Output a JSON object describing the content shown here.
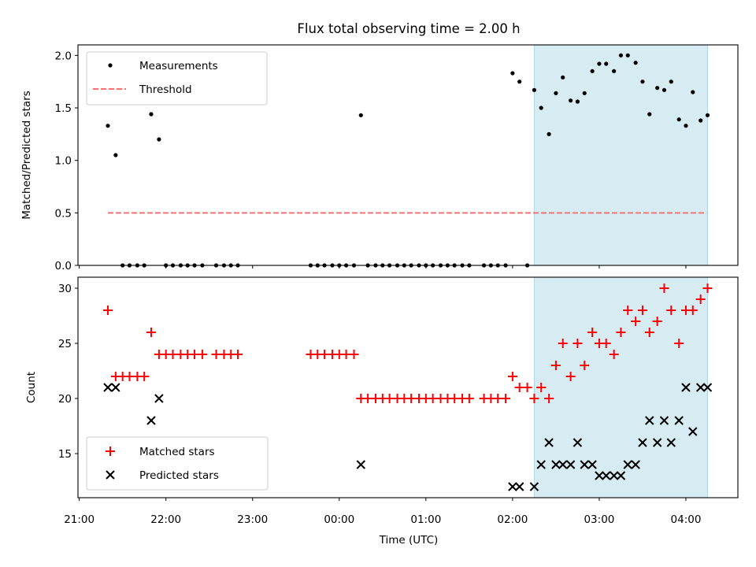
{
  "chart_data": {
    "title": "Flux total observing time = 2.00 h",
    "xlabel": "Time (UTC)",
    "x_ticks": [
      "21:00",
      "22:00",
      "23:00",
      "00:00",
      "01:00",
      "02:00",
      "03:00",
      "04:00"
    ],
    "x_range_hours": [
      20.985,
      28.6
    ],
    "highlight_span_hours": [
      26.25,
      28.25
    ],
    "colors": {
      "highlight": "#add8e6",
      "threshold": "#ff6f6f",
      "matched": "#ff0000",
      "predicted": "#000000",
      "measurement": "#000000"
    },
    "panels": [
      {
        "type": "scatter",
        "ylabel": "Matched/Predicted stars",
        "ylim": [
          0,
          2.1
        ],
        "yticks": [
          "0.0",
          "0.5",
          "1.0",
          "1.5",
          "2.0"
        ],
        "legend": {
          "position": "upper-left",
          "entries": [
            "Measurements",
            "Threshold"
          ]
        },
        "threshold": {
          "name": "Threshold",
          "y": 0.5,
          "x_range": [
            21.33,
            28.24
          ]
        },
        "series": [
          {
            "name": "Measurements",
            "points": [
              [
                21.33,
                1.33
              ],
              [
                21.42,
                1.05
              ],
              [
                21.5,
                0
              ],
              [
                21.58,
                0
              ],
              [
                21.67,
                0
              ],
              [
                21.75,
                0
              ],
              [
                21.83,
                1.44
              ],
              [
                21.92,
                1.2
              ],
              [
                22.0,
                0
              ],
              [
                22.08,
                0
              ],
              [
                22.17,
                0
              ],
              [
                22.25,
                0
              ],
              [
                22.33,
                0
              ],
              [
                22.42,
                0
              ],
              [
                22.58,
                0
              ],
              [
                22.67,
                0
              ],
              [
                22.75,
                0
              ],
              [
                22.83,
                0
              ],
              [
                23.67,
                0
              ],
              [
                23.75,
                0
              ],
              [
                23.83,
                0
              ],
              [
                23.92,
                0
              ],
              [
                24.0,
                0
              ],
              [
                24.08,
                0
              ],
              [
                24.17,
                0
              ],
              [
                24.25,
                1.43
              ],
              [
                24.33,
                0
              ],
              [
                24.42,
                0
              ],
              [
                24.5,
                0
              ],
              [
                24.58,
                0
              ],
              [
                24.67,
                0
              ],
              [
                24.75,
                0
              ],
              [
                24.83,
                0
              ],
              [
                24.92,
                0
              ],
              [
                25.0,
                0
              ],
              [
                25.08,
                0
              ],
              [
                25.17,
                0
              ],
              [
                25.25,
                0
              ],
              [
                25.33,
                0
              ],
              [
                25.42,
                0
              ],
              [
                25.5,
                0
              ],
              [
                25.67,
                0
              ],
              [
                25.75,
                0
              ],
              [
                25.83,
                0
              ],
              [
                25.92,
                0
              ],
              [
                26.0,
                1.83
              ],
              [
                26.08,
                1.75
              ],
              [
                26.17,
                0
              ],
              [
                26.25,
                1.67
              ],
              [
                26.33,
                1.5
              ],
              [
                26.42,
                1.25
              ],
              [
                26.5,
                1.64
              ],
              [
                26.58,
                1.79
              ],
              [
                26.67,
                1.57
              ],
              [
                26.75,
                1.56
              ],
              [
                26.83,
                1.64
              ],
              [
                26.92,
                1.85
              ],
              [
                27.0,
                1.92
              ],
              [
                27.08,
                1.92
              ],
              [
                27.17,
                1.85
              ],
              [
                27.25,
                2.0
              ],
              [
                27.33,
                2.0
              ],
              [
                27.42,
                1.93
              ],
              [
                27.5,
                1.75
              ],
              [
                27.58,
                1.44
              ],
              [
                27.67,
                1.69
              ],
              [
                27.75,
                1.67
              ],
              [
                27.83,
                1.75
              ],
              [
                27.92,
                1.39
              ],
              [
                28.0,
                1.33
              ],
              [
                28.08,
                1.65
              ],
              [
                28.17,
                1.38
              ],
              [
                28.25,
                1.43
              ]
            ]
          }
        ]
      },
      {
        "type": "scatter",
        "ylabel": "Count",
        "ylim": [
          11,
          31
        ],
        "yticks": [
          "15",
          "20",
          "25",
          "30"
        ],
        "legend": {
          "position": "lower-left",
          "entries": [
            "Matched stars",
            "Predicted stars"
          ]
        },
        "series": [
          {
            "name": "Matched stars",
            "marker": "+",
            "points": [
              [
                21.33,
                28
              ],
              [
                21.42,
                22
              ],
              [
                21.5,
                22
              ],
              [
                21.58,
                22
              ],
              [
                21.67,
                22
              ],
              [
                21.75,
                22
              ],
              [
                21.83,
                26
              ],
              [
                21.92,
                24
              ],
              [
                22.0,
                24
              ],
              [
                22.08,
                24
              ],
              [
                22.17,
                24
              ],
              [
                22.25,
                24
              ],
              [
                22.33,
                24
              ],
              [
                22.42,
                24
              ],
              [
                22.58,
                24
              ],
              [
                22.67,
                24
              ],
              [
                22.75,
                24
              ],
              [
                22.83,
                24
              ],
              [
                23.67,
                24
              ],
              [
                23.75,
                24
              ],
              [
                23.83,
                24
              ],
              [
                23.92,
                24
              ],
              [
                24.0,
                24
              ],
              [
                24.08,
                24
              ],
              [
                24.17,
                24
              ],
              [
                24.25,
                20
              ],
              [
                24.33,
                20
              ],
              [
                24.42,
                20
              ],
              [
                24.5,
                20
              ],
              [
                24.58,
                20
              ],
              [
                24.67,
                20
              ],
              [
                24.75,
                20
              ],
              [
                24.83,
                20
              ],
              [
                24.92,
                20
              ],
              [
                25.0,
                20
              ],
              [
                25.08,
                20
              ],
              [
                25.17,
                20
              ],
              [
                25.25,
                20
              ],
              [
                25.33,
                20
              ],
              [
                25.42,
                20
              ],
              [
                25.5,
                20
              ],
              [
                25.67,
                20
              ],
              [
                25.75,
                20
              ],
              [
                25.83,
                20
              ],
              [
                25.92,
                20
              ],
              [
                26.0,
                22
              ],
              [
                26.08,
                21
              ],
              [
                26.17,
                21
              ],
              [
                26.25,
                20
              ],
              [
                26.33,
                21
              ],
              [
                26.42,
                20
              ],
              [
                26.5,
                23
              ],
              [
                26.58,
                25
              ],
              [
                26.67,
                22
              ],
              [
                26.75,
                25
              ],
              [
                26.83,
                23
              ],
              [
                26.92,
                26
              ],
              [
                27.0,
                25
              ],
              [
                27.08,
                25
              ],
              [
                27.17,
                24
              ],
              [
                27.25,
                26
              ],
              [
                27.33,
                28
              ],
              [
                27.42,
                27
              ],
              [
                27.5,
                28
              ],
              [
                27.58,
                26
              ],
              [
                27.67,
                27
              ],
              [
                27.75,
                30
              ],
              [
                27.83,
                28
              ],
              [
                27.92,
                25
              ],
              [
                28.0,
                28
              ],
              [
                28.08,
                28
              ],
              [
                28.17,
                29
              ],
              [
                28.25,
                30
              ]
            ]
          },
          {
            "name": "Predicted stars",
            "marker": "x",
            "points": [
              [
                21.33,
                21
              ],
              [
                21.42,
                21
              ],
              [
                21.83,
                18
              ],
              [
                21.92,
                20
              ],
              [
                24.25,
                14
              ],
              [
                26.0,
                12
              ],
              [
                26.08,
                12
              ],
              [
                26.25,
                12
              ],
              [
                26.33,
                14
              ],
              [
                26.42,
                16
              ],
              [
                26.5,
                14
              ],
              [
                26.58,
                14
              ],
              [
                26.67,
                14
              ],
              [
                26.75,
                16
              ],
              [
                26.83,
                14
              ],
              [
                26.92,
                14
              ],
              [
                27.0,
                13
              ],
              [
                27.08,
                13
              ],
              [
                27.17,
                13
              ],
              [
                27.25,
                13
              ],
              [
                27.33,
                14
              ],
              [
                27.42,
                14
              ],
              [
                27.5,
                16
              ],
              [
                27.58,
                18
              ],
              [
                27.67,
                16
              ],
              [
                27.75,
                18
              ],
              [
                27.83,
                16
              ],
              [
                27.92,
                18
              ],
              [
                28.0,
                21
              ],
              [
                28.08,
                17
              ],
              [
                28.17,
                21
              ],
              [
                28.25,
                21
              ]
            ]
          }
        ]
      }
    ]
  }
}
